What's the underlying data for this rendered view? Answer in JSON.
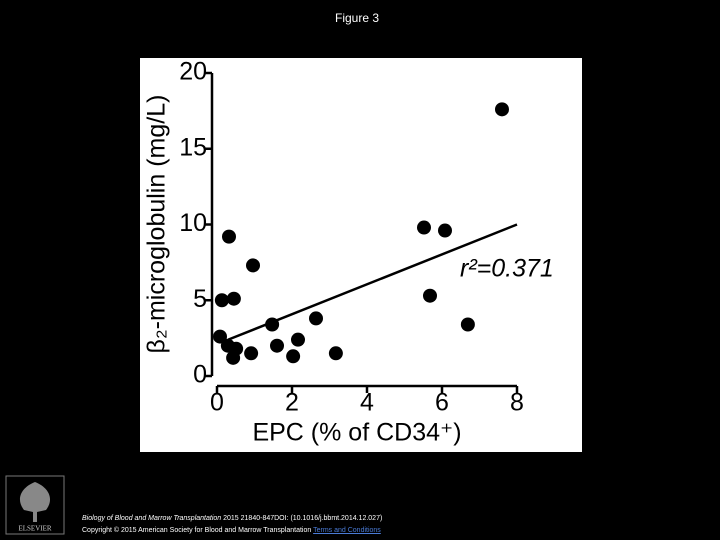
{
  "title": "Figure 3",
  "chart_data": {
    "type": "scatter",
    "xlabel": "EPC (% of CD34⁺)",
    "ylabel": "β₂-microglobulin (mg/L)",
    "annotation": "r²=0.371",
    "color": "#000000",
    "x": [
      0.08,
      0.13,
      0.45,
      0.32,
      0.96,
      0.29,
      0.51,
      0.43,
      0.91,
      1.47,
      1.6,
      2.03,
      2.16,
      2.64,
      3.17,
      5.52,
      6.08,
      5.68,
      6.69,
      7.6
    ],
    "values": [
      2.6,
      5.0,
      5.1,
      9.2,
      7.3,
      2.0,
      1.8,
      1.2,
      1.5,
      3.4,
      2.0,
      1.3,
      2.4,
      3.8,
      1.5,
      9.8,
      9.6,
      5.3,
      3.4,
      17.6
    ],
    "fit": {
      "x": [
        0.3,
        8
      ],
      "y": [
        2.4,
        10.0
      ]
    },
    "xlim": [
      0,
      8
    ],
    "xticks": [
      0,
      2,
      4,
      6,
      8
    ],
    "ylim": [
      0,
      20
    ],
    "yticks": [
      0,
      5,
      10,
      15,
      20
    ]
  },
  "footer": {
    "journal": "Biology of Blood and Marrow Transplantation",
    "citation": "2015 21840-847DOI: (10.1016/j.bbmt.2014.12.027)",
    "copyright": "Copyright © 2015 American Society for Blood and Marrow Transplantation",
    "link": "Terms and Conditions",
    "logo": "ELSEVIER"
  }
}
